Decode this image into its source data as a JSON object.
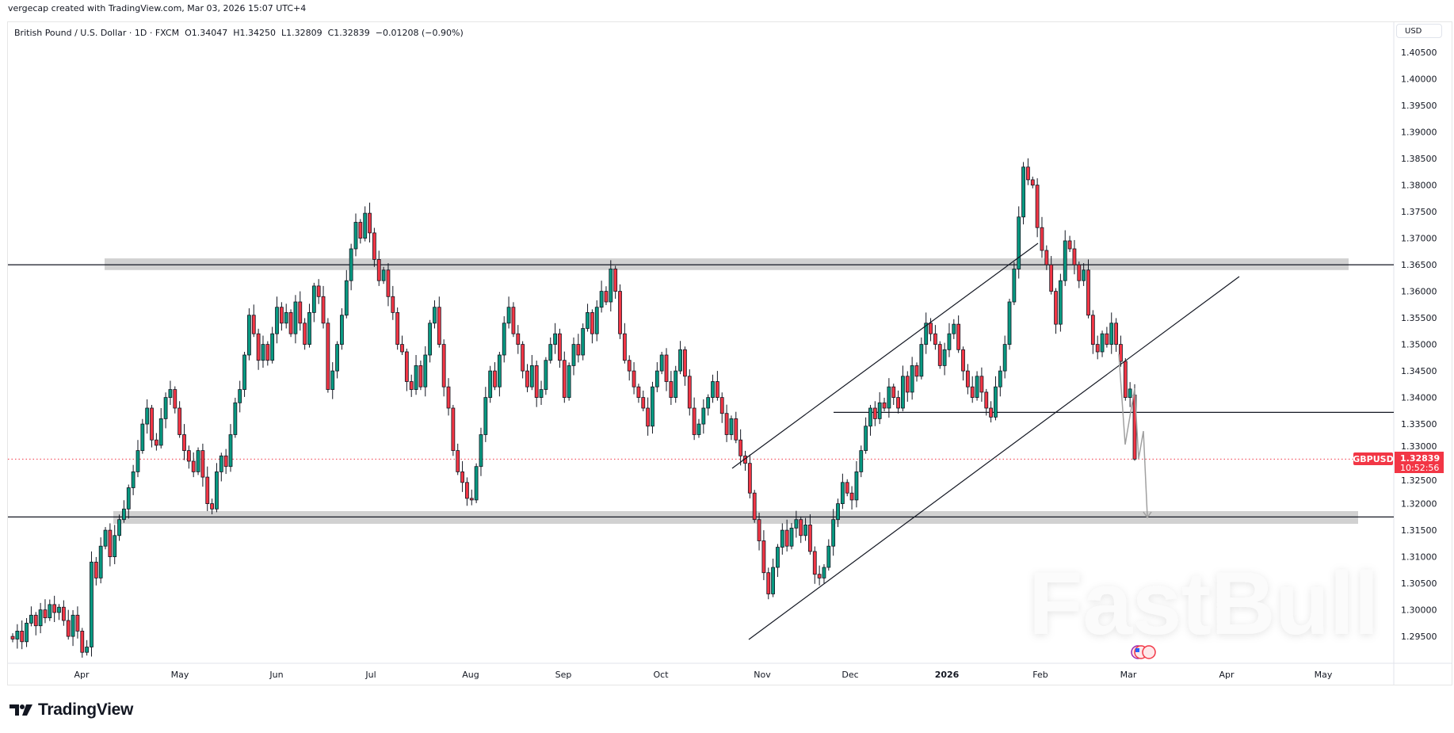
{
  "credit": "vergecap created with TradingView.com, Mar 03, 2026 15:07 UTC+4",
  "legend": {
    "symbol": "British Pound / U.S. Dollar · 1D · FXCM",
    "open": "O1.34047",
    "high": "H1.34250",
    "low": "L1.32809",
    "close": "C1.32839",
    "change": "−0.01208 (−0.90%)"
  },
  "currency_label": "USD",
  "brand": "TradingView",
  "watermark": "FastBull",
  "last_price": {
    "ticker": "GBPUSD",
    "price": "1.32839",
    "countdown": "10:52:56",
    "color": "#f23645"
  },
  "colors": {
    "up": "#089981",
    "down": "#f23645",
    "zone": "#d1d1d1",
    "projection": "#a0a0a0"
  },
  "chart_data": {
    "type": "candlestick",
    "symbol": "GBPUSD",
    "interval": "1D",
    "ylim": [
      1.29,
      1.4075
    ],
    "y_ticks": [
      "1.40500",
      "1.40000",
      "1.39500",
      "1.39000",
      "1.38500",
      "1.38000",
      "1.37500",
      "1.37000",
      "1.36500",
      "1.36000",
      "1.35500",
      "1.35000",
      "1.34500",
      "1.34000",
      "1.33500",
      "1.33000",
      "1.32500",
      "1.32000",
      "1.31500",
      "1.31000",
      "1.30500",
      "1.30000",
      "1.29500"
    ],
    "x_ticks": [
      "Apr",
      "May",
      "Jun",
      "Jul",
      "Aug",
      "Sep",
      "Oct",
      "Nov",
      "Dec",
      "2026",
      "Feb",
      "Mar",
      "Apr",
      "May"
    ],
    "first_open": 1.295,
    "last_open": 1.34047,
    "closes": [
      1.2945,
      1.296,
      1.294,
      1.2975,
      1.299,
      1.297,
      1.3,
      1.2985,
      1.301,
      1.2995,
      1.3005,
      1.298,
      1.295,
      1.299,
      1.296,
      1.292,
      1.293,
      1.309,
      1.306,
      1.312,
      1.315,
      1.31,
      1.314,
      1.317,
      1.319,
      1.323,
      1.326,
      1.33,
      1.335,
      1.338,
      1.332,
      1.331,
      1.336,
      1.34,
      1.3415,
      1.338,
      1.333,
      1.33,
      1.328,
      1.326,
      1.33,
      1.325,
      1.32,
      1.319,
      1.326,
      1.329,
      1.327,
      1.333,
      1.339,
      1.3415,
      1.348,
      1.3555,
      1.352,
      1.347,
      1.35,
      1.347,
      1.352,
      1.357,
      1.354,
      1.356,
      1.352,
      1.358,
      1.354,
      1.35,
      1.356,
      1.361,
      1.359,
      1.354,
      1.3415,
      1.345,
      1.35,
      1.3555,
      1.362,
      1.368,
      1.373,
      1.37,
      1.3747,
      1.371,
      1.366,
      1.362,
      1.364,
      1.359,
      1.356,
      1.35,
      1.3486,
      1.343,
      1.3415,
      1.346,
      1.342,
      1.348,
      1.354,
      1.357,
      1.35,
      1.342,
      1.338,
      1.33,
      1.326,
      1.324,
      1.321,
      1.3207,
      1.327,
      1.333,
      1.34,
      1.345,
      1.342,
      1.348,
      1.354,
      1.357,
      1.352,
      1.35,
      1.345,
      1.342,
      1.346,
      1.34,
      1.3415,
      1.347,
      1.35,
      1.352,
      1.347,
      1.34,
      1.346,
      1.35,
      1.348,
      1.353,
      1.356,
      1.352,
      1.357,
      1.36,
      1.358,
      1.3642,
      1.36,
      1.352,
      1.347,
      1.345,
      1.342,
      1.34,
      1.338,
      1.3346,
      1.342,
      1.345,
      1.348,
      1.343,
      1.34,
      1.345,
      1.349,
      1.344,
      1.338,
      1.333,
      1.335,
      1.338,
      1.34,
      1.343,
      1.34,
      1.337,
      1.333,
      1.336,
      1.332,
      1.329,
      1.3276,
      1.322,
      1.317,
      1.313,
      1.307,
      1.303,
      1.308,
      1.3118,
      1.315,
      1.312,
      1.3154,
      1.317,
      1.314,
      1.316,
      1.311,
      1.3067,
      1.306,
      1.308,
      1.312,
      1.317,
      1.32,
      1.324,
      1.322,
      1.3207,
      1.326,
      1.33,
      1.3346,
      1.338,
      1.336,
      1.339,
      1.338,
      1.342,
      1.34,
      1.338,
      1.344,
      1.341,
      1.346,
      1.344,
      1.35,
      1.354,
      1.352,
      1.35,
      1.346,
      1.349,
      1.352,
      1.3538,
      1.349,
      1.345,
      1.342,
      1.34,
      1.344,
      1.341,
      1.338,
      1.3363,
      1.342,
      1.345,
      1.35,
      1.358,
      1.3642,
      1.374,
      1.3834,
      1.381,
      1.38,
      1.372,
      1.3677,
      1.365,
      1.36,
      1.3538,
      1.362,
      1.3695,
      1.368,
      1.365,
      1.362,
      1.364,
      1.3555,
      1.35,
      1.3486,
      1.352,
      1.35,
      1.354,
      1.35,
      1.3468,
      1.34,
      1.3416,
      1.32839
    ],
    "horizontal_levels": [
      1.365,
      1.3175,
      1.3372
    ],
    "support_resistance_zones": [
      [
        1.364,
        1.3662
      ],
      [
        1.3162,
        1.3186
      ]
    ]
  }
}
